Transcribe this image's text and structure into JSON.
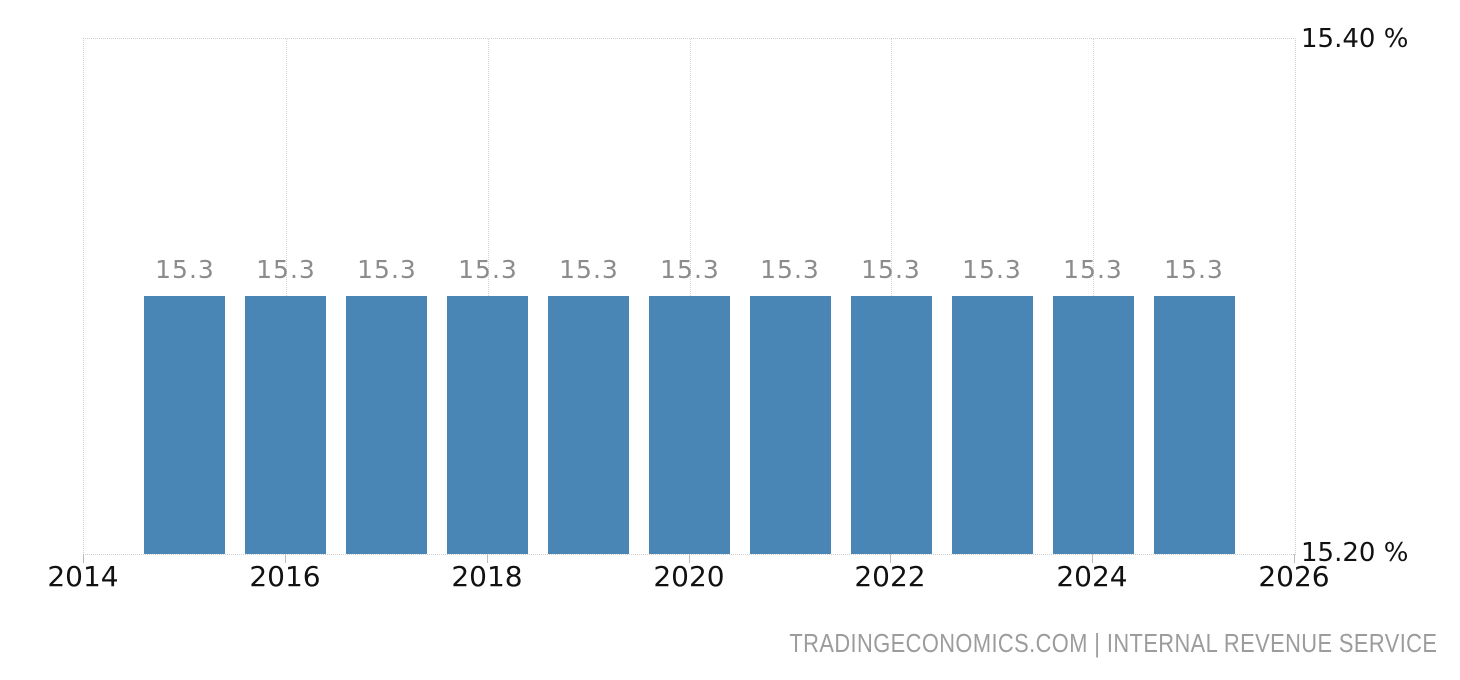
{
  "chart_data": {
    "type": "bar",
    "title": "",
    "xlabel": "",
    "ylabel": "",
    "x": [
      2015,
      2016,
      2017,
      2018,
      2019,
      2020,
      2021,
      2022,
      2023,
      2024,
      2025
    ],
    "values": [
      15.3,
      15.3,
      15.3,
      15.3,
      15.3,
      15.3,
      15.3,
      15.3,
      15.3,
      15.3,
      15.3
    ],
    "value_labels": [
      "15.3",
      "15.3",
      "15.3",
      "15.3",
      "15.3",
      "15.3",
      "15.3",
      "15.3",
      "15.3",
      "15.3",
      "15.3"
    ],
    "xlim": [
      2014,
      2026
    ],
    "ylim": [
      15.2,
      15.4
    ],
    "x_ticks": [
      2014,
      2016,
      2018,
      2020,
      2022,
      2024,
      2026
    ],
    "y_axis_labels": [
      {
        "value": 15.4,
        "label": "15.40 %"
      },
      {
        "value": 15.2,
        "label": "15.20 %"
      }
    ],
    "grid": "vertical-dotted-at-even-years, dotted plot border",
    "legend": "none",
    "colors": {
      "bar": "#4985b5",
      "value_label": "#8c8c8c",
      "axis_text": "#111111",
      "gridline": "#d2d2d2",
      "tick": "#bdbdbd",
      "attribution": "#9c9c9c",
      "background": "#ffffff"
    }
  },
  "footer": {
    "attribution": "TRADINGECONOMICS.COM | INTERNAL REVENUE SERVICE"
  }
}
